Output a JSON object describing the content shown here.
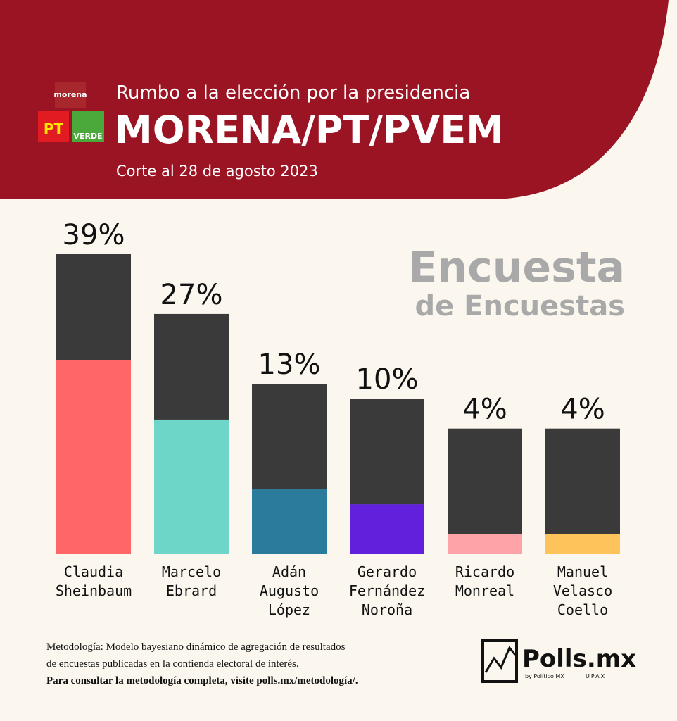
{
  "header": {
    "subtitle": "Rumbo a la elección por la presidencia",
    "title": "MORENA/PT/PVEM",
    "date": "Corte al 28 de agosto 2023",
    "logos": [
      "morena",
      "PT",
      "VERDE"
    ]
  },
  "watermark": [
    "Encuesta",
    "de Encuestas"
  ],
  "chart_data": {
    "type": "bar",
    "categories": [
      [
        "Claudia",
        "Sheinbaum"
      ],
      [
        "Marcelo",
        "Ebrard"
      ],
      [
        "Adán",
        "Augusto",
        "López"
      ],
      [
        "Gerardo",
        "Fernández",
        "Noroña"
      ],
      [
        "Ricardo",
        "Monreal"
      ],
      [
        "Manuel",
        "Velasco",
        "Coello"
      ]
    ],
    "values": [
      39,
      27,
      13,
      10,
      4,
      4
    ],
    "value_labels": [
      "39%",
      "27%",
      "13%",
      "10%",
      "4%",
      "4%"
    ],
    "colors": [
      "#fe6667",
      "#6dd6c9",
      "#2a7b9c",
      "#6220dc",
      "#fea3a8",
      "#fec35a"
    ]
  },
  "footer": {
    "methodology": [
      "Metodología: Modelo bayesiano dinámico de agregación de resultados",
      "de encuestas publicadas en la contienda electoral de interés."
    ],
    "link": "Para consultar la metodología completa, visite polls.mx/metodología/.",
    "brand": "Polls.mx",
    "byline": "by Político MX",
    "partner": "UPAX"
  }
}
